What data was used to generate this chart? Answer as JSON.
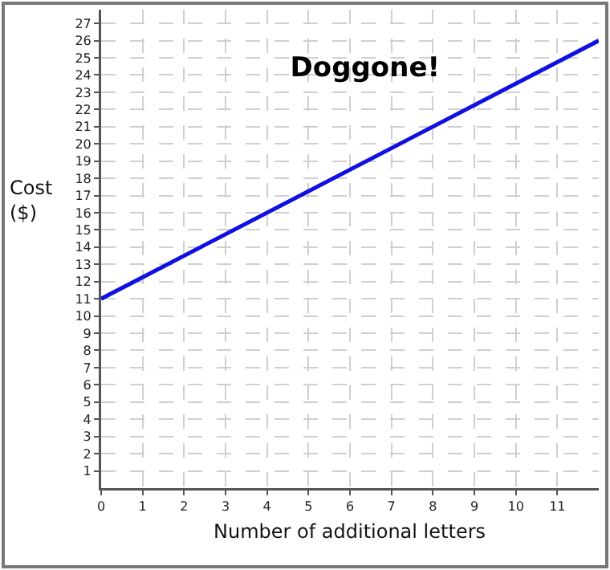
{
  "chart_data": {
    "type": "line",
    "title": "Doggone!",
    "xlabel": "Number of additional letters",
    "ylabel": "Cost\n($)",
    "x": [
      0,
      12
    ],
    "series": [
      {
        "color": "#1010e0",
        "values": [
          11,
          26
        ]
      }
    ],
    "xlim": [
      0,
      12
    ],
    "xticks": [
      0,
      1,
      2,
      3,
      4,
      5,
      6,
      7,
      8,
      9,
      10,
      11
    ],
    "ylim": [
      0,
      27.8
    ],
    "yticks": [
      1,
      2,
      3,
      4,
      5,
      6,
      7,
      8,
      9,
      10,
      11,
      12,
      13,
      14,
      15,
      16,
      17,
      18,
      19,
      20,
      21,
      22,
      23,
      24,
      25,
      26,
      27
    ],
    "grid": true,
    "marker": "none",
    "line_style": "solid"
  }
}
